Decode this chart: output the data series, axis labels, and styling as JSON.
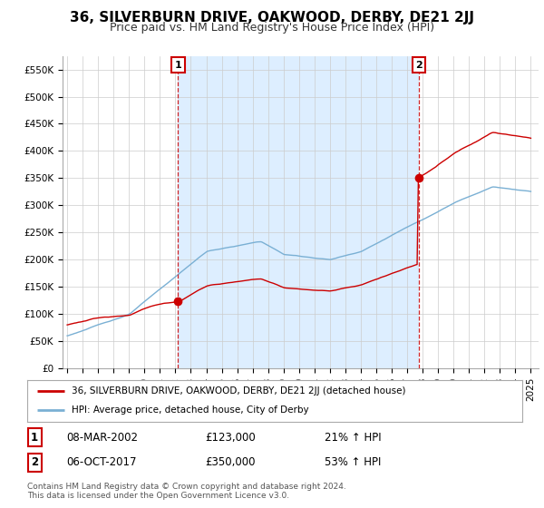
{
  "title": "36, SILVERBURN DRIVE, OAKWOOD, DERBY, DE21 2JJ",
  "subtitle": "Price paid vs. HM Land Registry's House Price Index (HPI)",
  "ylabel_ticks": [
    "£0",
    "£50K",
    "£100K",
    "£150K",
    "£200K",
    "£250K",
    "£300K",
    "£350K",
    "£400K",
    "£450K",
    "£500K",
    "£550K"
  ],
  "ytick_values": [
    0,
    50000,
    100000,
    150000,
    200000,
    250000,
    300000,
    350000,
    400000,
    450000,
    500000,
    550000
  ],
  "ylim": [
    0,
    575000
  ],
  "xlim_start": 1994.7,
  "xlim_end": 2025.5,
  "sale1_x": 2002.18,
  "sale1_y": 123000,
  "sale2_x": 2017.75,
  "sale2_y": 350000,
  "legend_line1": "36, SILVERBURN DRIVE, OAKWOOD, DERBY, DE21 2JJ (detached house)",
  "legend_line2": "HPI: Average price, detached house, City of Derby",
  "annotation1_label": "1",
  "annotation1_date": "08-MAR-2002",
  "annotation1_price": "£123,000",
  "annotation1_hpi": "21% ↑ HPI",
  "annotation2_label": "2",
  "annotation2_date": "06-OCT-2017",
  "annotation2_price": "£350,000",
  "annotation2_hpi": "53% ↑ HPI",
  "footer": "Contains HM Land Registry data © Crown copyright and database right 2024.\nThis data is licensed under the Open Government Licence v3.0.",
  "line_color_property": "#cc0000",
  "line_color_hpi": "#7ab0d4",
  "vline_color": "#cc0000",
  "shade_color": "#ddeeff",
  "bg_color": "#ffffff",
  "grid_color": "#cccccc",
  "title_fontsize": 11,
  "subtitle_fontsize": 9,
  "axis_fontsize": 7.5
}
